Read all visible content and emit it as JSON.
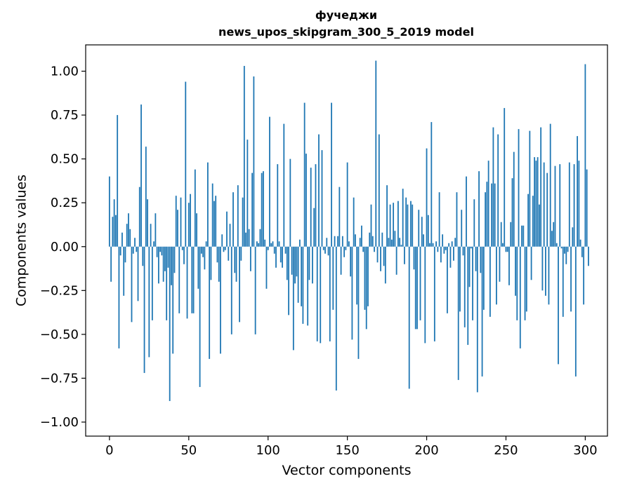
{
  "chart_data": {
    "type": "bar",
    "title_line1": "фучеджи",
    "title_line2": "news_upos_skipgram_300_5_2019 model",
    "xlabel": "Vector components",
    "ylabel": "Components values",
    "xlim": [
      -15,
      314
    ],
    "ylim": [
      -1.08,
      1.15
    ],
    "xticks": [
      0,
      50,
      100,
      150,
      200,
      250,
      300
    ],
    "yticks": [
      -1.0,
      -0.75,
      -0.5,
      -0.25,
      0.0,
      0.25,
      0.5,
      0.75,
      1.0
    ],
    "ytick_labels": [
      "−1.00",
      "−0.75",
      "−0.50",
      "−0.25",
      "0.00",
      "0.25",
      "0.50",
      "0.75",
      "1.00"
    ],
    "bar_color": "#1f77b4",
    "values": [
      0.4,
      -0.2,
      0.17,
      0.27,
      0.18,
      0.75,
      -0.58,
      -0.05,
      0.08,
      -0.28,
      -0.09,
      0.13,
      0.19,
      0.1,
      -0.43,
      -0.04,
      0.05,
      -0.03,
      -0.31,
      0.34,
      0.81,
      -0.11,
      -0.72,
      0.57,
      0.27,
      -0.63,
      0.13,
      -0.42,
      0.03,
      0.19,
      -0.06,
      -0.21,
      -0.03,
      -0.05,
      -0.2,
      -0.14,
      -0.42,
      -0.12,
      -0.88,
      -0.22,
      -0.61,
      -0.15,
      0.29,
      0.21,
      -0.38,
      0.28,
      -0.02,
      -0.1,
      0.94,
      -0.41,
      0.25,
      0.3,
      -0.38,
      -0.38,
      0.44,
      0.19,
      -0.24,
      -0.8,
      -0.04,
      -0.06,
      -0.13,
      0.03,
      0.48,
      -0.64,
      -0.19,
      0.36,
      0.26,
      0.29,
      -0.09,
      -0.2,
      -0.61,
      0.07,
      -0.03,
      -0.02,
      0.2,
      -0.08,
      0.13,
      -0.5,
      0.31,
      -0.15,
      -0.2,
      0.35,
      -0.43,
      -0.08,
      0.28,
      1.03,
      0.08,
      0.61,
      0.1,
      -0.14,
      0.42,
      0.97,
      -0.5,
      0.03,
      0.02,
      0.1,
      0.42,
      0.43,
      0.04,
      -0.24,
      -0.02,
      0.74,
      0.02,
      0.03,
      -0.04,
      -0.12,
      0.47,
      0.03,
      -0.09,
      -0.12,
      0.7,
      -0.04,
      -0.19,
      -0.39,
      0.5,
      -0.16,
      -0.59,
      -0.21,
      -0.17,
      -0.32,
      0.04,
      -0.34,
      -0.44,
      0.82,
      0.53,
      -0.45,
      -0.19,
      0.45,
      -0.21,
      0.22,
      0.47,
      -0.54,
      0.64,
      -0.55,
      0.55,
      -0.02,
      -0.04,
      0.05,
      -0.05,
      -0.54,
      0.82,
      -0.36,
      0.06,
      -0.82,
      0.06,
      0.34,
      -0.16,
      0.06,
      -0.06,
      -0.02,
      0.48,
      0.03,
      -0.17,
      -0.53,
      0.28,
      0.07,
      -0.33,
      -0.64,
      0.05,
      0.12,
      -0.03,
      -0.36,
      -0.47,
      -0.34,
      0.08,
      0.24,
      0.06,
      -0.03,
      1.06,
      -0.09,
      0.64,
      -0.14,
      0.08,
      -0.11,
      -0.21,
      0.35,
      0.05,
      0.24,
      0.04,
      0.25,
      0.09,
      -0.16,
      0.26,
      0.05,
      0.01,
      0.33,
      -0.1,
      0.28,
      0.24,
      -0.81,
      0.26,
      0.24,
      -0.13,
      -0.47,
      -0.47,
      0.21,
      -0.42,
      0.17,
      0.07,
      -0.55,
      0.56,
      0.18,
      0.02,
      0.71,
      0.02,
      -0.54,
      0.03,
      -0.03,
      0.31,
      -0.09,
      0.07,
      -0.04,
      -0.02,
      -0.38,
      0.02,
      -0.12,
      0.03,
      -0.08,
      0.05,
      0.31,
      -0.76,
      -0.37,
      0.21,
      -0.05,
      -0.46,
      0.4,
      -0.56,
      -0.23,
      -0.01,
      -0.42,
      0.27,
      -0.14,
      -0.83,
      0.43,
      -0.15,
      -0.74,
      -0.36,
      0.31,
      0.37,
      0.49,
      -0.4,
      0.36,
      0.68,
      0.36,
      -0.33,
      0.64,
      -0.2,
      0.14,
      0.02,
      0.79,
      -0.03,
      -0.03,
      -0.22,
      0.14,
      0.39,
      0.54,
      -0.28,
      -0.42,
      0.67,
      -0.58,
      0.12,
      0.12,
      -0.42,
      -0.37,
      0.3,
      0.66,
      -0.19,
      0.29,
      0.51,
      0.49,
      0.51,
      0.24,
      0.68,
      -0.25,
      0.48,
      -0.28,
      0.42,
      -0.33,
      0.7,
      0.09,
      0.14,
      0.46,
      0.02,
      -0.67,
      0.47,
      -0.01,
      -0.4,
      -0.04,
      -0.1,
      -0.03,
      0.48,
      -0.37,
      0.11,
      0.47,
      -0.74,
      0.63,
      0.49,
      0.04,
      -0.06,
      -0.33,
      1.04,
      0.44,
      -0.11
    ]
  }
}
